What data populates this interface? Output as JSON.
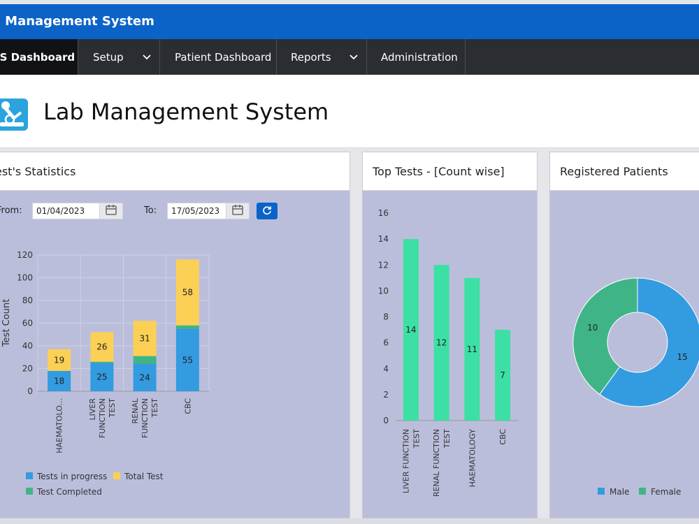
{
  "app": {
    "title": "b Management System"
  },
  "nav": {
    "items": [
      {
        "label": "IS Dashboard",
        "active": true
      },
      {
        "label": "Setup",
        "dropdown": true
      },
      {
        "label": "Patient Dashboard"
      },
      {
        "label": "Reports",
        "dropdown": true
      },
      {
        "label": "Administration"
      }
    ]
  },
  "header": {
    "title": "Lab Management System"
  },
  "panels": {
    "tests": {
      "title": "est's Statistics",
      "from_label": "From:",
      "from_value": "01/04/2023",
      "to_label": "To:",
      "to_value": "17/05/2023"
    },
    "top_tests": {
      "title": "Top Tests - [Count wise]"
    },
    "patients": {
      "title": "Registered Patients"
    }
  },
  "colors": {
    "blue": "#339be0",
    "yellow": "#fbd055",
    "green": "#3fb587",
    "mint": "#3ce0a4",
    "navy": "#0b63c8"
  },
  "chart_data": [
    {
      "type": "bar",
      "stacked": true,
      "ylabel": "Test Count",
      "ylim": [
        0,
        120
      ],
      "yticks": [
        0,
        20,
        40,
        60,
        80,
        100,
        120
      ],
      "categories": [
        [
          "HAEMATOLO..."
        ],
        [
          "LIVER",
          "FUNCTION",
          "TEST"
        ],
        [
          "RENAL",
          "FUNCTION",
          "TEST"
        ],
        [
          "CBC"
        ]
      ],
      "series": [
        {
          "name": "Tests in progress",
          "color": "#339be0",
          "values": [
            18,
            25,
            24,
            55
          ]
        },
        {
          "name": "Test Completed",
          "color": "#3fb587",
          "values": [
            0,
            1,
            7,
            3
          ]
        },
        {
          "name": "Total Test",
          "color": "#fbd055",
          "values": [
            19,
            26,
            31,
            58
          ]
        }
      ],
      "labels_shown": [
        [
          18,
          25,
          24,
          55
        ],
        [
          null,
          null,
          null,
          null
        ],
        [
          19,
          26,
          31,
          58
        ]
      ],
      "legend": [
        {
          "name": "Tests in progress",
          "color": "#339be0"
        },
        {
          "name": "Total Test",
          "color": "#fbd055"
        },
        {
          "name": "Test Completed",
          "color": "#3fb587"
        }
      ],
      "legend_position": "bottom"
    },
    {
      "type": "bar",
      "ylim": [
        0,
        16
      ],
      "yticks": [
        0,
        2,
        4,
        6,
        8,
        10,
        12,
        14,
        16
      ],
      "categories": [
        [
          "LIVER FUNCTION",
          "TEST"
        ],
        [
          "RENAL FUNCTION",
          "TEST"
        ],
        [
          "HAEMATOLOGY"
        ],
        [
          "CBC"
        ]
      ],
      "series": [
        {
          "color": "#3ce0a4",
          "values": [
            14,
            12,
            11,
            7
          ]
        }
      ]
    },
    {
      "type": "pie",
      "donut": true,
      "slices": [
        {
          "name": "Male",
          "value": 15,
          "color": "#339be0"
        },
        {
          "name": "Female",
          "value": 10,
          "color": "#3fb587"
        }
      ],
      "legend_position": "bottom"
    }
  ]
}
